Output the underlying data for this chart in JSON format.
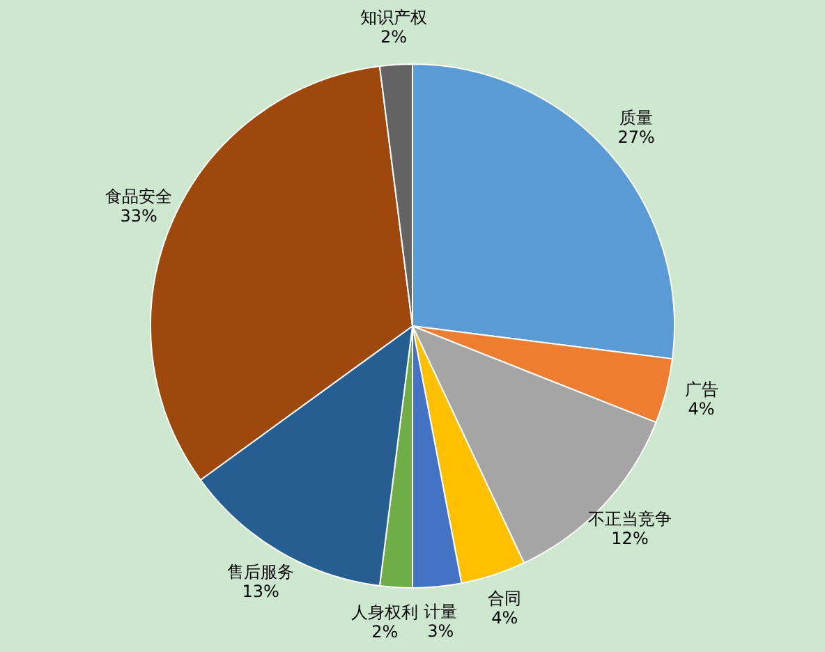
{
  "chart_data": {
    "type": "pie",
    "categories": [
      "质量",
      "广告",
      "不正当竞争",
      "合同",
      "计量",
      "人身权利",
      "售后服务",
      "食品安全",
      "知识产权"
    ],
    "values": [
      27,
      4,
      12,
      4,
      3,
      2,
      13,
      33,
      2
    ],
    "value_labels": [
      "27%",
      "4%",
      "12%",
      "4%",
      "3%",
      "2%",
      "13%",
      "33%",
      "2%"
    ],
    "colors": [
      "#5b9bd5",
      "#ed7d31",
      "#a5a5a5",
      "#ffc000",
      "#4472c4",
      "#70ad47",
      "#255e91",
      "#9e480e",
      "#636363"
    ],
    "legend": false
  }
}
